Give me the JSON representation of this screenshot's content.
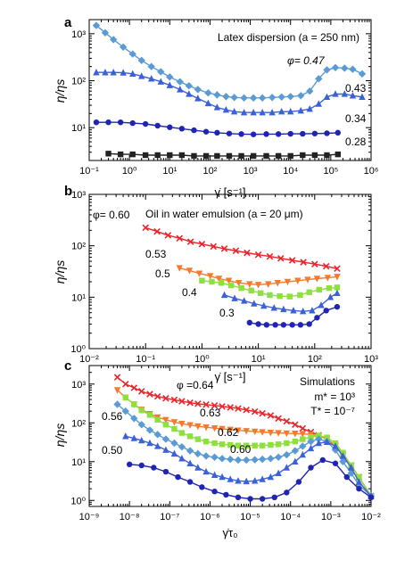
{
  "figure": {
    "panels": [
      {
        "id": "a",
        "annotation": "Latex dispersion (a = 250 nm)"
      },
      {
        "id": "b",
        "annotation": "Oil in water emulsion  (a = 20 μm)"
      },
      {
        "id": "c",
        "annotation": "Simulations",
        "params": [
          "m* = 10³",
          "T* = 10⁻⁷"
        ]
      }
    ]
  },
  "chart_data": [
    {
      "panel": "a",
      "type": "line",
      "title": "",
      "xlabel": "γ̇ [s⁻¹]",
      "ylabel": "η/ηs",
      "xscale": "log",
      "yscale": "log",
      "xlim": [
        0.1,
        1000000
      ],
      "ylim": [
        2,
        2000
      ],
      "x_ticks": [
        0.1,
        1,
        10,
        100,
        1000,
        10000,
        100000,
        1000000
      ],
      "x_tick_labels": [
        "10⁻¹",
        "10⁰",
        "10¹",
        "10²",
        "10³",
        "10⁴",
        "10⁵",
        "10⁶"
      ],
      "y_ticks": [
        10,
        100,
        1000
      ],
      "y_tick_labels": [
        "10¹",
        "10²",
        "10³"
      ],
      "series": [
        {
          "name": "φ= 0.47",
          "marker": "diamond",
          "color": "#5b9bd5",
          "x": [
            0.15,
            0.25,
            0.4,
            0.7,
            1.2,
            2,
            3.5,
            6,
            10,
            18,
            30,
            50,
            90,
            150,
            250,
            400,
            700,
            1200,
            2000,
            3500,
            6000,
            10000,
            18000,
            30000,
            50000,
            80000,
            130000,
            220000,
            350000,
            600000
          ],
          "y": [
            1500,
            1050,
            750,
            520,
            370,
            270,
            200,
            155,
            120,
            95,
            78,
            65,
            55,
            50,
            46,
            44,
            43,
            43,
            43,
            44,
            45,
            46,
            48,
            60,
            110,
            170,
            190,
            185,
            175,
            140
          ]
        },
        {
          "name": "0.43",
          "marker": "triangle",
          "color": "#3b61d9",
          "x": [
            0.15,
            0.25,
            0.4,
            0.7,
            1.2,
            2,
            3.5,
            6,
            10,
            18,
            30,
            50,
            90,
            150,
            250,
            400,
            700,
            1200,
            2000,
            3500,
            6000,
            10000,
            18000,
            30000,
            50000,
            80000,
            130000,
            220000,
            350000,
            600000
          ],
          "y": [
            150,
            150,
            150,
            148,
            140,
            125,
            110,
            95,
            80,
            65,
            52,
            42,
            33,
            27,
            24,
            22,
            21,
            21,
            21,
            21,
            22,
            22,
            23,
            25,
            32,
            45,
            52,
            52,
            48,
            45
          ]
        },
        {
          "name": "0.34",
          "marker": "circle",
          "color": "#1f24b3",
          "x": [
            0.15,
            0.3,
            0.6,
            1.2,
            2.5,
            5,
            10,
            20,
            40,
            80,
            150,
            300,
            600,
            1200,
            2500,
            5000,
            10000,
            20000,
            40000,
            80000,
            150000
          ],
          "y": [
            13,
            13,
            13,
            12.5,
            12,
            11,
            10.2,
            9.5,
            8.8,
            8.2,
            7.8,
            7.5,
            7.3,
            7.2,
            7.3,
            7.3,
            7.4,
            7.4,
            7.5,
            7.6,
            7.8
          ]
        },
        {
          "name": "0.28",
          "marker": "square",
          "color": "#222222",
          "x": [
            0.3,
            0.6,
            1.2,
            2.5,
            5,
            10,
            20,
            40,
            80,
            150,
            300,
            600,
            1200,
            2500,
            5000,
            10000,
            20000,
            40000,
            80000,
            150000
          ],
          "y": [
            2.8,
            2.7,
            2.7,
            2.6,
            2.6,
            2.6,
            2.6,
            2.5,
            2.5,
            2.5,
            2.5,
            2.5,
            2.5,
            2.5,
            2.5,
            2.5,
            2.6,
            2.6,
            2.6,
            2.7
          ]
        }
      ]
    },
    {
      "panel": "b",
      "type": "line",
      "title": "",
      "xlabel": "γ̇ [s⁻¹]",
      "ylabel": "η/ηs",
      "xscale": "log",
      "yscale": "log",
      "xlim": [
        0.01,
        1000
      ],
      "ylim": [
        1,
        1000
      ],
      "x_ticks": [
        0.01,
        0.1,
        1,
        10,
        100,
        1000
      ],
      "x_tick_labels": [
        "10⁻²",
        "10⁻¹",
        "10⁰",
        "10¹",
        "10²",
        "10³"
      ],
      "y_ticks": [
        1,
        10,
        100,
        1000
      ],
      "y_tick_labels": [
        "10⁰",
        "10¹",
        "10²",
        "10³"
      ],
      "series": [
        {
          "name": "φ= 0.60",
          "marker": "x",
          "color": "#e8262b",
          "x": [
            0.1,
            0.16,
            0.25,
            0.4,
            0.63,
            1,
            1.6,
            2.5,
            4,
            6.3,
            10,
            16,
            25,
            40,
            63,
            100,
            160,
            250
          ],
          "y": [
            225,
            190,
            160,
            140,
            120,
            108,
            97,
            88,
            80,
            73,
            67,
            62,
            57,
            52,
            48,
            44,
            40,
            36
          ]
        },
        {
          "name": "0.53",
          "marker": "triangle-down",
          "color": "#f57a30",
          "x": [
            0.4,
            0.6,
            0.9,
            1.4,
            2,
            3,
            4.5,
            7,
            10,
            15,
            22,
            33,
            50,
            75,
            110,
            170,
            250
          ],
          "y": [
            37,
            33,
            29,
            26,
            23,
            21,
            19,
            18,
            17.5,
            18,
            19,
            20,
            21,
            22,
            23,
            24,
            25
          ]
        },
        {
          "name": "0.5",
          "marker": "square",
          "color": "#8ee03d",
          "x": [
            1,
            1.5,
            2.2,
            3.3,
            5,
            7.5,
            11,
            16,
            24,
            36,
            55,
            80,
            120,
            180,
            250
          ],
          "y": [
            21,
            20,
            19,
            17,
            15,
            13.5,
            12,
            11,
            10.5,
            10.3,
            11,
            12.5,
            14,
            15,
            15.5
          ]
        },
        {
          "name": "0.4",
          "marker": "triangle",
          "color": "#3b61d9",
          "x": [
            2.5,
            3.8,
            5.6,
            8.4,
            12.5,
            19,
            28,
            42,
            62,
            90,
            130,
            190,
            250
          ],
          "y": [
            11,
            9.5,
            8.5,
            7.5,
            6.8,
            6.2,
            5.8,
            5.5,
            5.3,
            5.5,
            7,
            10,
            12
          ]
        },
        {
          "name": "0.3",
          "marker": "circle",
          "color": "#1f24b3",
          "x": [
            7,
            10,
            14,
            20,
            28,
            40,
            56,
            80,
            110,
            160,
            250
          ],
          "y": [
            3.2,
            3.0,
            2.9,
            2.9,
            2.9,
            2.9,
            2.9,
            3.0,
            4.0,
            5.5,
            6.5
          ]
        }
      ]
    },
    {
      "panel": "c",
      "type": "line",
      "title": "",
      "xlabel": "γ̇τ₀",
      "ylabel": "η/ηs",
      "xscale": "log",
      "yscale": "log",
      "xlim": [
        1e-09,
        0.01
      ],
      "ylim": [
        0.7,
        3000
      ],
      "x_ticks": [
        1e-09,
        1e-08,
        1e-07,
        1e-06,
        1e-05,
        0.0001,
        0.001,
        0.01
      ],
      "x_tick_labels": [
        "10⁻⁹",
        "10⁻⁸",
        "10⁻⁷",
        "10⁻⁶",
        "10⁻⁵",
        "10⁻⁴",
        "10⁻³",
        "10⁻²"
      ],
      "y_ticks": [
        1,
        10,
        100,
        1000
      ],
      "y_tick_labels": [
        "10⁰",
        "10¹",
        "10²",
        "10³"
      ],
      "series": [
        {
          "name": "φ =0.64",
          "marker": "x",
          "color": "#e8262b",
          "x": [
            5e-09,
            8e-09,
            1.3e-08,
            2e-08,
            3.2e-08,
            5e-08,
            8e-08,
            1.3e-07,
            2e-07,
            3.2e-07,
            5e-07,
            8e-07,
            1.3e-06,
            2e-06,
            3.2e-06,
            5e-06,
            8e-06,
            1.3e-05,
            2e-05,
            3.2e-05,
            5e-05,
            8e-05,
            0.00013,
            0.0002,
            0.00032,
            0.0005,
            0.0008,
            0.0013,
            0.002,
            0.0032,
            0.005,
            0.01
          ],
          "y": [
            1500,
            1000,
            800,
            650,
            550,
            480,
            430,
            390,
            360,
            330,
            310,
            295,
            280,
            265,
            250,
            235,
            215,
            195,
            175,
            155,
            130,
            110,
            90,
            72,
            58,
            48,
            38,
            25,
            15,
            8,
            4,
            1.3
          ]
        },
        {
          "name": "0.63",
          "marker": "triangle-down",
          "color": "#f57a30",
          "x": [
            5e-09,
            8e-09,
            1.3e-08,
            2e-08,
            3.2e-08,
            5e-08,
            8e-08,
            1.3e-07,
            2e-07,
            3.2e-07,
            5e-07,
            8e-07,
            1.3e-06,
            2e-06,
            3.2e-06,
            5e-06,
            8e-06,
            1.3e-05,
            2e-05,
            3.2e-05,
            5e-05,
            8e-05,
            0.00013,
            0.0002,
            0.00032,
            0.0005,
            0.0008,
            0.0013,
            0.002,
            0.0032,
            0.005,
            0.01
          ],
          "y": [
            700,
            450,
            300,
            220,
            170,
            140,
            120,
            105,
            95,
            88,
            82,
            77,
            73,
            70,
            67,
            64,
            62,
            60,
            58,
            56,
            55,
            54,
            53,
            52,
            50,
            46,
            38,
            26,
            15,
            8,
            4,
            1.3
          ]
        },
        {
          "name": "0.62",
          "marker": "square",
          "color": "#8ee03d",
          "x": [
            8e-09,
            1.3e-08,
            2e-08,
            3.2e-08,
            5e-08,
            8e-08,
            1.3e-07,
            2e-07,
            3.2e-07,
            5e-07,
            8e-07,
            1.3e-06,
            2e-06,
            3.2e-06,
            5e-06,
            8e-06,
            1.3e-05,
            2e-05,
            3.2e-05,
            5e-05,
            8e-05,
            0.00013,
            0.0002,
            0.00032,
            0.0005,
            0.0008,
            0.0013,
            0.002,
            0.0032,
            0.005,
            0.01
          ],
          "y": [
            450,
            300,
            210,
            160,
            120,
            90,
            70,
            55,
            45,
            38,
            33,
            30,
            28,
            27,
            26,
            26,
            26,
            26,
            27,
            28,
            30,
            33,
            38,
            43,
            47,
            42,
            30,
            17,
            8,
            4,
            1.3
          ]
        },
        {
          "name": "0.56",
          "marker": "diamond",
          "color": "#5b9bd5",
          "x": [
            5e-09,
            8e-09,
            1.3e-08,
            2e-08,
            3.2e-08,
            5e-08,
            8e-08,
            1.3e-07,
            2e-07,
            3.2e-07,
            5e-07,
            8e-07,
            1.3e-06,
            2e-06,
            3.2e-06,
            5e-06,
            8e-06,
            1.3e-05,
            2e-05,
            3.2e-05,
            5e-05,
            8e-05,
            0.00013,
            0.0002,
            0.00032,
            0.0005,
            0.0008,
            0.0013,
            0.002,
            0.0032,
            0.005,
            0.01
          ],
          "y": [
            300,
            200,
            130,
            90,
            65,
            50,
            38,
            30,
            24,
            19,
            16,
            14,
            13,
            12,
            11.5,
            11,
            11,
            11.2,
            11.5,
            12,
            13,
            15,
            19,
            25,
            33,
            38,
            33,
            20,
            10,
            5,
            2.5,
            1.3
          ]
        },
        {
          "name": "0.60",
          "marker": "triangle",
          "color": "#3b61d9",
          "x": [
            8e-09,
            1.3e-08,
            2e-08,
            3.2e-08,
            5e-08,
            8e-08,
            1.3e-07,
            2e-07,
            3.2e-07,
            5e-07,
            8e-07,
            1.3e-06,
            2e-06,
            3.2e-06,
            5e-06,
            8e-06,
            1.3e-05,
            2e-05,
            3.2e-05,
            5e-05,
            8e-05,
            0.00013,
            0.0002,
            0.00032,
            0.0005,
            0.0008,
            0.0013,
            0.002,
            0.0032,
            0.005,
            0.01
          ],
          "y": [
            45,
            40,
            35,
            30,
            25,
            20,
            16,
            12,
            9,
            7,
            5.5,
            4.5,
            4,
            3.5,
            3.2,
            3.1,
            3.2,
            3.5,
            4,
            5,
            7,
            10,
            15,
            22,
            30,
            32,
            25,
            14,
            7,
            3,
            1.3
          ]
        },
        {
          "name": "0.50",
          "marker": "circle",
          "color": "#1f24b3",
          "x": [
            1e-08,
            2e-08,
            4e-08,
            8e-08,
            1.6e-07,
            3.2e-07,
            6.3e-07,
            1.3e-06,
            2.5e-06,
            5e-06,
            1e-05,
            2e-05,
            4e-05,
            8e-05,
            0.00016,
            0.00032,
            0.00063,
            0.0013,
            0.0025,
            0.005,
            0.01
          ],
          "y": [
            8.5,
            8,
            7,
            5.5,
            4,
            3,
            2.2,
            1.7,
            1.4,
            1.2,
            1.1,
            1.1,
            1.2,
            1.6,
            3,
            7,
            11,
            9,
            4,
            2,
            1.2
          ]
        }
      ]
    }
  ],
  "labels": {
    "a": {
      "id": "a",
      "annotation": "Latex dispersion (a = 250 nm)",
      "series_labels": [
        "φ= 0.47",
        "0.43",
        "0.34",
        "0.28"
      ],
      "ylabel": "η/ηs",
      "xlabel": "γ̇ [s⁻¹]"
    },
    "b": {
      "id": "b",
      "annotation": "Oil in water emulsion  (a = 20 μm)",
      "series_labels": [
        "φ= 0.60",
        "0.53",
        "0.5",
        "0.4",
        "0.3"
      ],
      "ylabel": "η/ηs",
      "xlabel": "γ̇ [s⁻¹]"
    },
    "c": {
      "id": "c",
      "annotation": "Simulations",
      "param1": "m* = 10³",
      "param2": "T* = 10⁻⁷",
      "series_labels": [
        "φ =0.64",
        "0.63",
        "0.62",
        "0.56",
        "0.60",
        "0.50"
      ],
      "ylabel": "η/ηs",
      "xlabel": "γ̇τ₀"
    }
  }
}
